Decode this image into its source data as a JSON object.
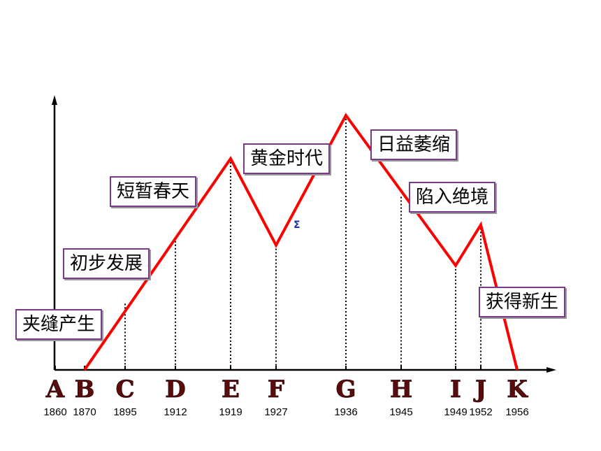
{
  "chart_data": {
    "type": "line",
    "title": "",
    "xlabel": "",
    "ylabel": "",
    "points": [
      {
        "letter": "A",
        "year": "1860"
      },
      {
        "letter": "B",
        "year": "1870"
      },
      {
        "letter": "C",
        "year": "1895"
      },
      {
        "letter": "D",
        "year": "1912"
      },
      {
        "letter": "E",
        "year": "1919"
      },
      {
        "letter": "F",
        "year": "1927"
      },
      {
        "letter": "G",
        "year": "1936"
      },
      {
        "letter": "H",
        "year": "1945"
      },
      {
        "letter": "I",
        "year": "1949"
      },
      {
        "letter": "J",
        "year": "1952"
      },
      {
        "letter": "K",
        "year": "1956"
      }
    ],
    "line_levels": [
      {
        "letter": "B",
        "level": 0
      },
      {
        "letter": "E",
        "level": 0.83
      },
      {
        "letter": "F",
        "level": 0.49
      },
      {
        "letter": "G",
        "level": 1.0
      },
      {
        "letter": "I",
        "level": 0.41
      },
      {
        "letter": "J",
        "level": 0.57
      },
      {
        "letter": "K",
        "level": 0
      }
    ],
    "guide_lines": [
      {
        "letter": "C",
        "level": 0.26
      },
      {
        "letter": "D",
        "level": 0.52
      },
      {
        "letter": "E",
        "level": 0.83
      },
      {
        "letter": "F",
        "level": 0.49
      },
      {
        "letter": "G",
        "level": 1.0
      },
      {
        "letter": "H",
        "level": 0.68
      },
      {
        "letter": "I",
        "level": 0.41
      },
      {
        "letter": "J",
        "level": 0.57
      }
    ],
    "annotations": [
      "夹缝产生",
      "初步发展",
      "短暂春天",
      "黄金时代",
      "日益萎缩",
      "陷入绝境",
      "获得新生"
    ],
    "line_color": "#ff0000",
    "box_border_color": "#7a3a8c"
  }
}
